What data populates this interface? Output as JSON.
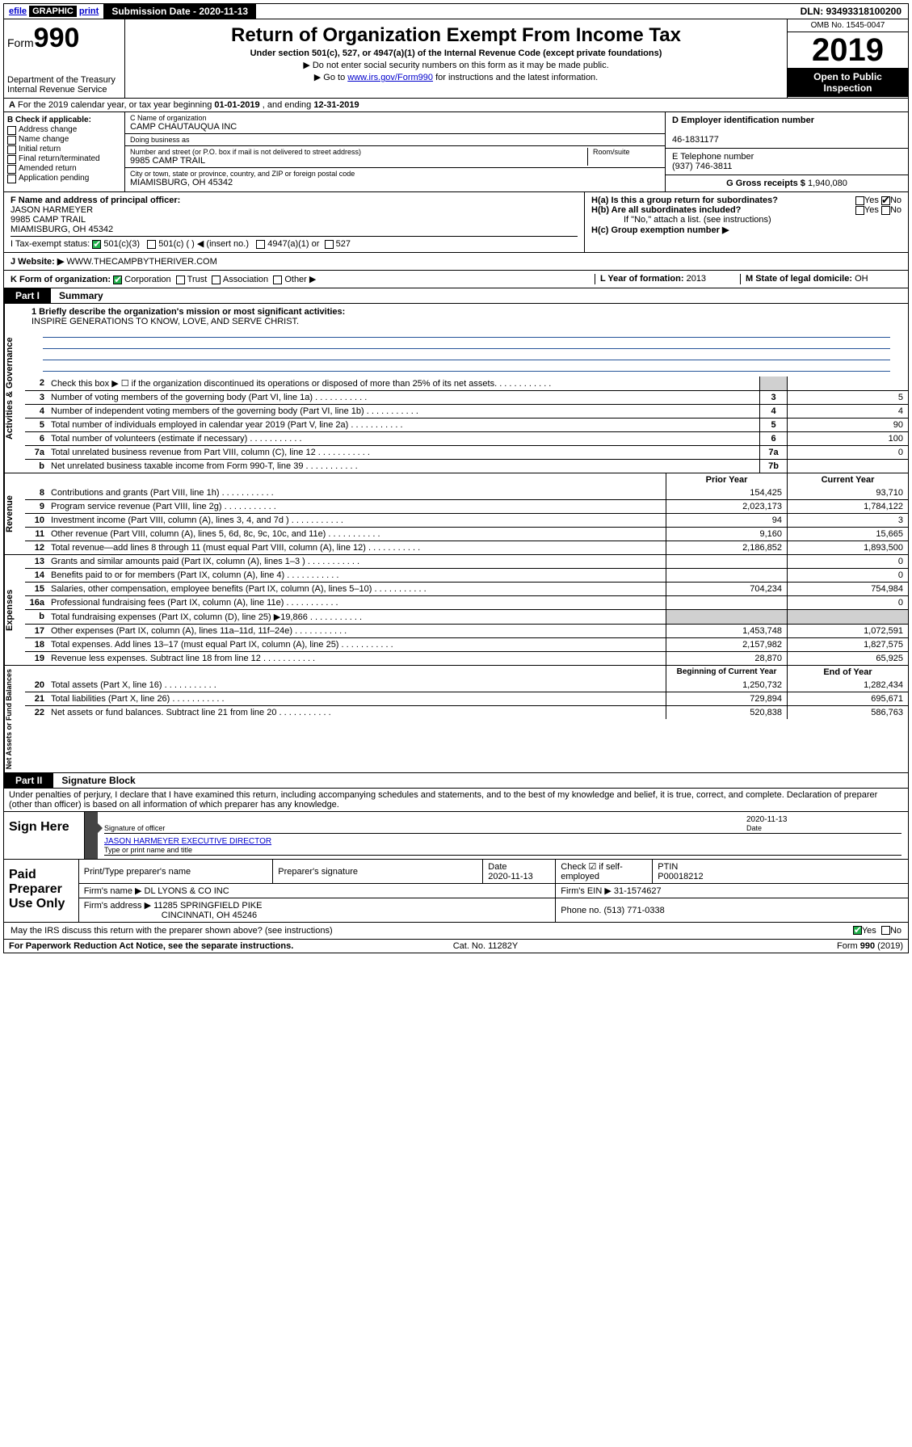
{
  "top": {
    "efile_prefix": "efile",
    "efile_graphic": "GRAPHIC",
    "efile_print": "print",
    "submission_label": "Submission Date - 2020-11-13",
    "dln": "DLN: 93493318100200"
  },
  "header": {
    "form_prefix": "Form",
    "form_number": "990",
    "title": "Return of Organization Exempt From Income Tax",
    "sub": "Under section 501(c), 527, or 4947(a)(1) of the Internal Revenue Code (except private foundations)",
    "note1": "▶ Do not enter social security numbers on this form as it may be made public.",
    "note2_pre": "▶ Go to ",
    "note2_link": "www.irs.gov/Form990",
    "note2_post": " for instructions and the latest information.",
    "dept": "Department of the Treasury\nInternal Revenue Service",
    "omb": "OMB No. 1545-0047",
    "year": "2019",
    "open": "Open to Public Inspection"
  },
  "rowA": {
    "prefix": "A",
    "text_pre": " For the 2019 calendar year, or tax year beginning ",
    "begin": "01-01-2019",
    "mid": "  , and ending ",
    "end": "12-31-2019"
  },
  "colB": {
    "label": "B Check if applicable:",
    "items": [
      "Address change",
      "Name change",
      "Initial return",
      "Final return/terminated",
      "Amended return",
      "Application pending"
    ]
  },
  "colC": {
    "name_label": "C Name of organization",
    "name": "CAMP CHAUTAUQUA INC",
    "dba_label": "Doing business as",
    "dba": "",
    "street_label": "Number and street (or P.O. box if mail is not delivered to street address)",
    "street": "9985 CAMP TRAIL",
    "room_label": "Room/suite",
    "city_label": "City or town, state or province, country, and ZIP or foreign postal code",
    "city": "MIAMISBURG, OH  45342"
  },
  "colDE": {
    "d_label": "D Employer identification number",
    "d_value": "46-1831177",
    "e_label": "E Telephone number",
    "e_value": "(937) 746-3811",
    "g_label": "G Gross receipts $",
    "g_value": "1,940,080"
  },
  "rowF": {
    "label": "F  Name and address of principal officer:",
    "name": "JASON HARMEYER",
    "addr1": "9985 CAMP TRAIL",
    "addr2": "MIAMISBURG, OH  45342"
  },
  "rowH": {
    "a": "H(a)  Is this a group return for subordinates?",
    "a_yes": "Yes",
    "a_no": "No",
    "b": "H(b)  Are all subordinates included?",
    "b_yes": "Yes",
    "b_no": "No",
    "b_note": "If \"No,\" attach a list. (see instructions)",
    "c": "H(c)  Group exemption number ▶"
  },
  "rowI": {
    "label": "I    Tax-exempt status:",
    "opt1": "501(c)(3)",
    "opt2": "501(c) (  ) ◀ (insert no.)",
    "opt3": "4947(a)(1) or",
    "opt4": "527"
  },
  "rowJ": {
    "label": "J   Website: ▶",
    "value": "WWW.THECAMPBYTHERIVER.COM"
  },
  "rowK": {
    "label": "K Form of organization:",
    "opts": [
      "Corporation",
      "Trust",
      "Association",
      "Other ▶"
    ],
    "l_label": "L Year of formation:",
    "l_value": "2013",
    "m_label": "M State of legal domicile:",
    "m_value": "OH"
  },
  "part1": {
    "tab": "Part I",
    "title": "Summary"
  },
  "mission": {
    "q": "1  Briefly describe the organization's mission or most significant activities:",
    "text": "INSPIRE GENERATIONS TO KNOW, LOVE, AND SERVE CHRIST."
  },
  "gov": {
    "label": "Activities & Governance",
    "lines": [
      {
        "n": "2",
        "d": "Check this box ▶ ☐  if the organization discontinued its operations or disposed of more than 25% of its net assets.",
        "box": "",
        "v1": "",
        "v2": ""
      },
      {
        "n": "3",
        "d": "Number of voting members of the governing body (Part VI, line 1a)",
        "box": "3",
        "v2": "5"
      },
      {
        "n": "4",
        "d": "Number of independent voting members of the governing body (Part VI, line 1b)",
        "box": "4",
        "v2": "4"
      },
      {
        "n": "5",
        "d": "Total number of individuals employed in calendar year 2019 (Part V, line 2a)",
        "box": "5",
        "v2": "90"
      },
      {
        "n": "6",
        "d": "Total number of volunteers (estimate if necessary)",
        "box": "6",
        "v2": "100"
      },
      {
        "n": "7a",
        "d": "Total unrelated business revenue from Part VIII, column (C), line 12",
        "box": "7a",
        "v2": "0"
      },
      {
        "n": "b",
        "d": "Net unrelated business taxable income from Form 990-T, line 39",
        "box": "7b",
        "v2": ""
      }
    ]
  },
  "rev": {
    "label": "Revenue",
    "head_prior": "Prior Year",
    "head_curr": "Current Year",
    "lines": [
      {
        "n": "8",
        "d": "Contributions and grants (Part VIII, line 1h)",
        "v1": "154,425",
        "v2": "93,710"
      },
      {
        "n": "9",
        "d": "Program service revenue (Part VIII, line 2g)",
        "v1": "2,023,173",
        "v2": "1,784,122"
      },
      {
        "n": "10",
        "d": "Investment income (Part VIII, column (A), lines 3, 4, and 7d )",
        "v1": "94",
        "v2": "3"
      },
      {
        "n": "11",
        "d": "Other revenue (Part VIII, column (A), lines 5, 6d, 8c, 9c, 10c, and 11e)",
        "v1": "9,160",
        "v2": "15,665"
      },
      {
        "n": "12",
        "d": "Total revenue—add lines 8 through 11 (must equal Part VIII, column (A), line 12)",
        "v1": "2,186,852",
        "v2": "1,893,500"
      }
    ]
  },
  "exp": {
    "label": "Expenses",
    "lines": [
      {
        "n": "13",
        "d": "Grants and similar amounts paid (Part IX, column (A), lines 1–3 )",
        "v1": "",
        "v2": "0"
      },
      {
        "n": "14",
        "d": "Benefits paid to or for members (Part IX, column (A), line 4)",
        "v1": "",
        "v2": "0"
      },
      {
        "n": "15",
        "d": "Salaries, other compensation, employee benefits (Part IX, column (A), lines 5–10)",
        "v1": "704,234",
        "v2": "754,984"
      },
      {
        "n": "16a",
        "d": "Professional fundraising fees (Part IX, column (A), line 11e)",
        "v1": "",
        "v2": "0"
      },
      {
        "n": "b",
        "d": "Total fundraising expenses (Part IX, column (D), line 25) ▶19,866",
        "v1": "shade",
        "v2": "shade"
      },
      {
        "n": "17",
        "d": "Other expenses (Part IX, column (A), lines 11a–11d, 11f–24e)",
        "v1": "1,453,748",
        "v2": "1,072,591"
      },
      {
        "n": "18",
        "d": "Total expenses. Add lines 13–17 (must equal Part IX, column (A), line 25)",
        "v1": "2,157,982",
        "v2": "1,827,575"
      },
      {
        "n": "19",
        "d": "Revenue less expenses. Subtract line 18 from line 12",
        "v1": "28,870",
        "v2": "65,925"
      }
    ]
  },
  "net": {
    "label": "Net Assets or Fund Balances",
    "head_prior": "Beginning of Current Year",
    "head_curr": "End of Year",
    "lines": [
      {
        "n": "20",
        "d": "Total assets (Part X, line 16)",
        "v1": "1,250,732",
        "v2": "1,282,434"
      },
      {
        "n": "21",
        "d": "Total liabilities (Part X, line 26)",
        "v1": "729,894",
        "v2": "695,671"
      },
      {
        "n": "22",
        "d": "Net assets or fund balances. Subtract line 21 from line 20",
        "v1": "520,838",
        "v2": "586,763"
      }
    ]
  },
  "part2": {
    "tab": "Part II",
    "title": "Signature Block"
  },
  "decl": "Under penalties of perjury, I declare that I have examined this return, including accompanying schedules and statements, and to the best of my knowledge and belief, it is true, correct, and complete. Declaration of preparer (other than officer) is based on all information of which preparer has any knowledge.",
  "sign": {
    "lab": "Sign Here",
    "sig_label": "Signature of officer",
    "date": "2020-11-13",
    "date_label": "Date",
    "name": "JASON HARMEYER EXECUTIVE DIRECTOR",
    "name_label": "Type or print name and title"
  },
  "prep": {
    "lab": "Paid Preparer Use Only",
    "h1": "Print/Type preparer's name",
    "h2": "Preparer's signature",
    "h3": "Date",
    "h3v": "2020-11-13",
    "h4": "Check ☑ if self-employed",
    "h5": "PTIN",
    "h5v": "P00018212",
    "firm_label": "Firm's name    ▶",
    "firm": "DL LYONS & CO INC",
    "ein_label": "Firm's EIN ▶",
    "ein": "31-1574627",
    "addr_label": "Firm's address ▶",
    "addr": "11285 SPRINGFIELD PIKE",
    "addr2": "CINCINNATI, OH  45246",
    "phone_label": "Phone no.",
    "phone": "(513) 771-0338"
  },
  "discuss": {
    "q": "May the IRS discuss this return with the preparer shown above? (see instructions)",
    "yes": "Yes",
    "no": "No"
  },
  "footer": {
    "left": "For Paperwork Reduction Act Notice, see the separate instructions.",
    "mid": "Cat. No. 11282Y",
    "right": "Form 990 (2019)"
  }
}
